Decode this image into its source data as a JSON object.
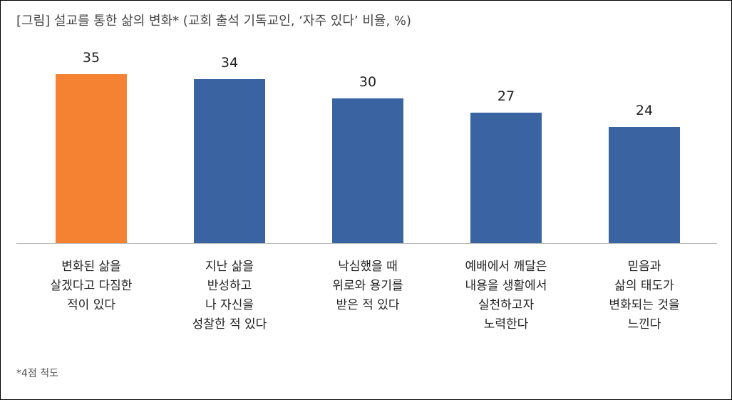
{
  "chart_data": {
    "type": "bar",
    "title": "[그림] 설교를 통한 삶의 변화* (교회 출석 기독교인, ‘자주 있다’ 비율, %)",
    "categories": [
      "변화된 삶을\n살겠다고 다짐한\n적이 있다",
      "지난 삶을\n반성하고\n나 자신을\n성찰한 적 있다",
      "낙심했을 때\n위로와 용기를\n받은 적 있다",
      "예배에서 깨달은\n내용을 생활에서\n실천하고자\n노력한다",
      "믿음과\n삶의 태도가\n변화되는 것을\n느낀다"
    ],
    "values": [
      35,
      34,
      30,
      27,
      24
    ],
    "colors": [
      "#f58233",
      "#3a64a1",
      "#3a64a1",
      "#3a64a1",
      "#3a64a1"
    ],
    "ylim": [
      0,
      40
    ],
    "note": "*4점 척도"
  }
}
